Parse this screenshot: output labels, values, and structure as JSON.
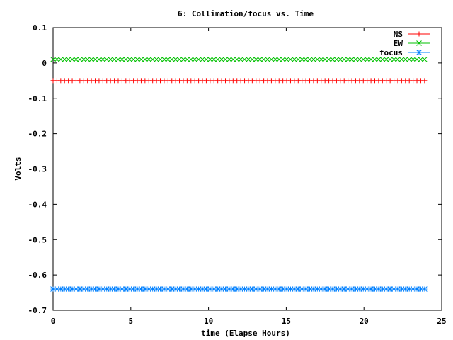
{
  "chart_data": {
    "type": "scatter",
    "title": "6: Collimation/focus vs. Time",
    "xlabel": "time (Elapse Hours)",
    "ylabel": "Volts",
    "xlim": [
      0,
      25
    ],
    "ylim": [
      -0.7,
      0.1
    ],
    "xticks": [
      0,
      5,
      10,
      15,
      20,
      25
    ],
    "xtick_labels": [
      "0",
      "5",
      "10",
      "15",
      "20",
      "25"
    ],
    "yticks": [
      0.1,
      0,
      -0.1,
      -0.2,
      -0.3,
      -0.4,
      -0.5,
      -0.6,
      -0.7
    ],
    "ytick_labels": [
      "0.1",
      "0",
      "-0.1",
      "-0.2",
      "-0.3",
      "-0.4",
      "-0.5",
      "-0.6",
      "-0.7"
    ],
    "legend_position": "top-right",
    "grid": false,
    "x_start": 0,
    "x_end": 23.9,
    "n_points": 98,
    "series": [
      {
        "name": "NS",
        "marker": "plus",
        "color": "#ff0000",
        "constant_value": -0.05
      },
      {
        "name": "EW",
        "marker": "cross",
        "color": "#00c000",
        "constant_value": 0.01
      },
      {
        "name": "focus",
        "marker": "star",
        "color": "#0080ff",
        "constant_value": -0.64
      }
    ]
  }
}
